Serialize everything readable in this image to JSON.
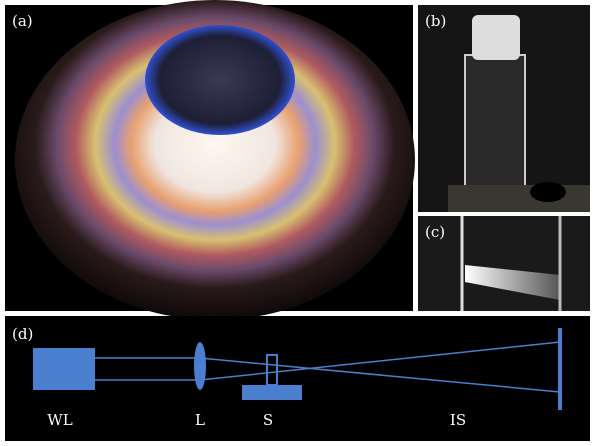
{
  "panels": {
    "a": "(a)",
    "b": "(b)",
    "c": "(c)",
    "d": "(d)"
  },
  "diagram": {
    "labels": [
      "WL",
      "L",
      "S",
      "IS"
    ]
  }
}
